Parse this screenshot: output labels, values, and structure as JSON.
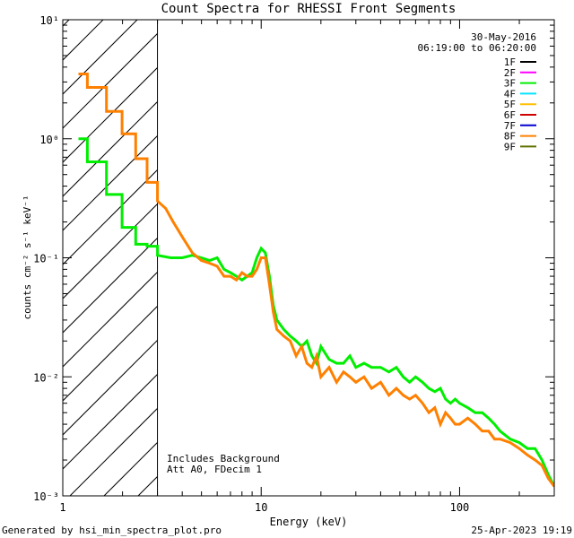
{
  "chart_data": {
    "type": "line",
    "title": "Count Spectra for RHESSI Front Segments",
    "date": "30-May-2016",
    "time_range": "06:19:00 to 06:20:00",
    "xlabel": "Energy (keV)",
    "ylabel": "counts cm⁻² s⁻¹ keV⁻¹",
    "x_scale": "log",
    "y_scale": "log",
    "xlim": [
      1,
      300
    ],
    "ylim": [
      0.001,
      10
    ],
    "x_tick_labels": [
      {
        "value": 1,
        "label": "1"
      },
      {
        "value": 10,
        "label": "10"
      },
      {
        "value": 100,
        "label": "100"
      }
    ],
    "y_tick_labels": [
      {
        "value": 10,
        "label": "10¹"
      },
      {
        "value": 1,
        "label": "10⁰"
      },
      {
        "value": 0.1,
        "label": "10⁻¹"
      },
      {
        "value": 0.01,
        "label": "10⁻²"
      },
      {
        "value": 0.001,
        "label": "10⁻³"
      }
    ],
    "shaded_region": {
      "x_max": 3,
      "style": "hatched"
    },
    "annotations": [
      "Includes Background",
      "Att A0, FDecim 1"
    ],
    "legend": [
      {
        "label": "1F",
        "color": "#000000"
      },
      {
        "label": "2F",
        "color": "#ff00ff"
      },
      {
        "label": "3F",
        "color": "#00ee00"
      },
      {
        "label": "4F",
        "color": "#00e5ff"
      },
      {
        "label": "5F",
        "color": "#ffc000"
      },
      {
        "label": "6F",
        "color": "#d00000"
      },
      {
        "label": "7F",
        "color": "#0000d0"
      },
      {
        "label": "8F",
        "color": "#ff8000"
      },
      {
        "label": "9F",
        "color": "#607000"
      }
    ],
    "series": [
      {
        "name": "3F",
        "color": "#00ee00",
        "points": [
          [
            1.2,
            1.0
          ],
          [
            1.33,
            1.0
          ],
          [
            1.33,
            0.64
          ],
          [
            1.66,
            0.64
          ],
          [
            1.66,
            0.34
          ],
          [
            1.99,
            0.34
          ],
          [
            1.99,
            0.18
          ],
          [
            2.33,
            0.18
          ],
          [
            2.33,
            0.13
          ],
          [
            2.66,
            0.13
          ],
          [
            2.66,
            0.125
          ],
          [
            3.0,
            0.125
          ],
          [
            3.0,
            0.105
          ],
          [
            3.5,
            0.1
          ],
          [
            4.0,
            0.1
          ],
          [
            4.5,
            0.105
          ],
          [
            5.0,
            0.1
          ],
          [
            5.5,
            0.095
          ],
          [
            6.0,
            0.1
          ],
          [
            6.5,
            0.08
          ],
          [
            7.0,
            0.075
          ],
          [
            7.5,
            0.07
          ],
          [
            8.0,
            0.065
          ],
          [
            8.5,
            0.07
          ],
          [
            9.0,
            0.075
          ],
          [
            9.5,
            0.1
          ],
          [
            10.0,
            0.12
          ],
          [
            10.5,
            0.11
          ],
          [
            11.0,
            0.07
          ],
          [
            11.5,
            0.04
          ],
          [
            12.0,
            0.03
          ],
          [
            13.0,
            0.025
          ],
          [
            14.0,
            0.022
          ],
          [
            15.0,
            0.02
          ],
          [
            16.0,
            0.018
          ],
          [
            17.0,
            0.02
          ],
          [
            18.0,
            0.015
          ],
          [
            19.0,
            0.013
          ],
          [
            20.0,
            0.018
          ],
          [
            22.0,
            0.014
          ],
          [
            24.0,
            0.013
          ],
          [
            26.0,
            0.013
          ],
          [
            28.0,
            0.015
          ],
          [
            30.0,
            0.012
          ],
          [
            33.0,
            0.013
          ],
          [
            36.0,
            0.012
          ],
          [
            40.0,
            0.012
          ],
          [
            44.0,
            0.011
          ],
          [
            48.0,
            0.012
          ],
          [
            52.0,
            0.01
          ],
          [
            56.0,
            0.009
          ],
          [
            60.0,
            0.01
          ],
          [
            65.0,
            0.009
          ],
          [
            70.0,
            0.008
          ],
          [
            75.0,
            0.0075
          ],
          [
            80.0,
            0.008
          ],
          [
            85.0,
            0.0065
          ],
          [
            90.0,
            0.006
          ],
          [
            95.0,
            0.0065
          ],
          [
            100.0,
            0.006
          ],
          [
            110.0,
            0.0055
          ],
          [
            120.0,
            0.005
          ],
          [
            130.0,
            0.005
          ],
          [
            140.0,
            0.0045
          ],
          [
            150.0,
            0.004
          ],
          [
            160.0,
            0.0035
          ],
          [
            180.0,
            0.003
          ],
          [
            200.0,
            0.0028
          ],
          [
            220.0,
            0.0025
          ],
          [
            240.0,
            0.0025
          ],
          [
            260.0,
            0.002
          ],
          [
            280.0,
            0.0015
          ],
          [
            300.0,
            0.0012
          ]
        ]
      },
      {
        "name": "8F",
        "color": "#ff8000",
        "points": [
          [
            1.2,
            3.5
          ],
          [
            1.33,
            3.5
          ],
          [
            1.33,
            2.7
          ],
          [
            1.66,
            2.7
          ],
          [
            1.66,
            1.7
          ],
          [
            1.99,
            1.7
          ],
          [
            1.99,
            1.1
          ],
          [
            2.33,
            1.1
          ],
          [
            2.33,
            0.68
          ],
          [
            2.66,
            0.68
          ],
          [
            2.66,
            0.43
          ],
          [
            3.0,
            0.43
          ],
          [
            3.0,
            0.3
          ],
          [
            3.3,
            0.26
          ],
          [
            3.6,
            0.2
          ],
          [
            4.0,
            0.15
          ],
          [
            4.5,
            0.11
          ],
          [
            5.0,
            0.095
          ],
          [
            5.5,
            0.09
          ],
          [
            6.0,
            0.085
          ],
          [
            6.5,
            0.07
          ],
          [
            7.0,
            0.07
          ],
          [
            7.5,
            0.065
          ],
          [
            8.0,
            0.075
          ],
          [
            8.5,
            0.07
          ],
          [
            9.0,
            0.07
          ],
          [
            9.5,
            0.08
          ],
          [
            10.0,
            0.1
          ],
          [
            10.5,
            0.1
          ],
          [
            11.0,
            0.06
          ],
          [
            11.5,
            0.035
          ],
          [
            12.0,
            0.025
          ],
          [
            13.0,
            0.022
          ],
          [
            14.0,
            0.02
          ],
          [
            15.0,
            0.015
          ],
          [
            16.0,
            0.018
          ],
          [
            17.0,
            0.013
          ],
          [
            18.0,
            0.012
          ],
          [
            19.0,
            0.015
          ],
          [
            20.0,
            0.01
          ],
          [
            22.0,
            0.012
          ],
          [
            24.0,
            0.009
          ],
          [
            26.0,
            0.011
          ],
          [
            28.0,
            0.01
          ],
          [
            30.0,
            0.009
          ],
          [
            33.0,
            0.01
          ],
          [
            36.0,
            0.008
          ],
          [
            40.0,
            0.009
          ],
          [
            44.0,
            0.007
          ],
          [
            48.0,
            0.008
          ],
          [
            52.0,
            0.007
          ],
          [
            56.0,
            0.0065
          ],
          [
            60.0,
            0.007
          ],
          [
            65.0,
            0.006
          ],
          [
            70.0,
            0.005
          ],
          [
            75.0,
            0.0055
          ],
          [
            80.0,
            0.004
          ],
          [
            85.0,
            0.005
          ],
          [
            90.0,
            0.0045
          ],
          [
            95.0,
            0.004
          ],
          [
            100.0,
            0.004
          ],
          [
            110.0,
            0.0045
          ],
          [
            120.0,
            0.004
          ],
          [
            130.0,
            0.0035
          ],
          [
            140.0,
            0.0035
          ],
          [
            150.0,
            0.003
          ],
          [
            160.0,
            0.003
          ],
          [
            180.0,
            0.0028
          ],
          [
            200.0,
            0.0025
          ],
          [
            220.0,
            0.0022
          ],
          [
            240.0,
            0.002
          ],
          [
            260.0,
            0.0018
          ],
          [
            280.0,
            0.0014
          ],
          [
            300.0,
            0.0012
          ]
        ]
      }
    ]
  },
  "footer": {
    "left": "Generated by hsi_min_spectra_plot.pro",
    "right": "25-Apr-2023 19:19"
  }
}
